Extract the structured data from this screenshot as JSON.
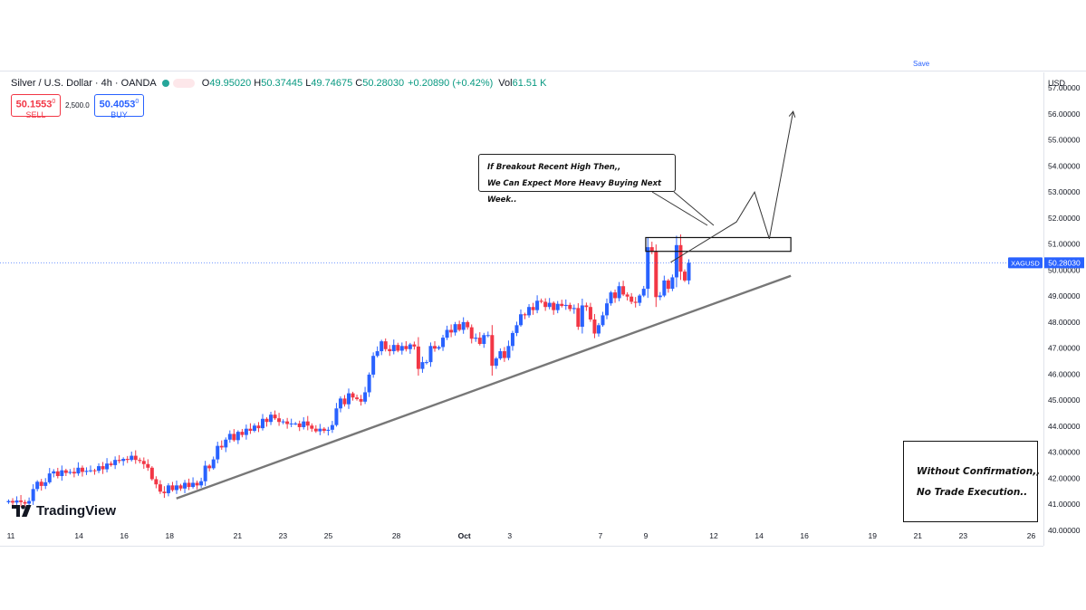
{
  "toolbar": {
    "save_label": "Save"
  },
  "symbol": {
    "name": "Silver / U.S. Dollar · 4h · OANDA",
    "ohlc": {
      "o_label": "O",
      "o": "49.95020",
      "h_label": "H",
      "h": "50.37445",
      "l_label": "L",
      "l": "49.74675",
      "c_label": "C",
      "c": "50.28030"
    },
    "change": "+0.20890 (+0.42%)",
    "vol_label": "Vol",
    "vol": "61.51 K"
  },
  "trade": {
    "sell_price": "50.1553",
    "sell_price_sup": "0",
    "sell_label": "SELL",
    "spread": "2,500.0",
    "buy_price": "50.4053",
    "buy_price_sup": "0",
    "buy_label": "BUY"
  },
  "axis": {
    "unit": "USD",
    "ticker_badge": "XAGUSD",
    "last_price": "50.28030"
  },
  "annotations": {
    "note_line1": "If Breakout Recent High Then,,",
    "note_line2": "We Can Expect More Heavy Buying Next Week..",
    "warn_line1": "Without Confirmation,,",
    "warn_line2": "No Trade Execution.."
  },
  "brand": {
    "logo_text": "TradingView"
  },
  "colors": {
    "up": "#2962ff",
    "down": "#f23645",
    "trend": "#777777",
    "price_line": "#2962ff"
  },
  "chart_data": {
    "type": "candlestick",
    "title": "Silver / U.S. Dollar · 4h · OANDA",
    "ylim": [
      39.4,
      57.6
    ],
    "y_ticks": [
      "40.00000",
      "41.00000",
      "42.00000",
      "43.00000",
      "44.00000",
      "45.00000",
      "46.00000",
      "47.00000",
      "48.00000",
      "49.00000",
      "50.00000",
      "51.00000",
      "52.00000",
      "53.00000",
      "54.00000",
      "55.00000",
      "56.00000",
      "57.00000"
    ],
    "x_ticks": [
      {
        "label": "11",
        "day": 11
      },
      {
        "label": "14",
        "day": 14
      },
      {
        "label": "16",
        "day": 16
      },
      {
        "label": "18",
        "day": 18
      },
      {
        "label": "21",
        "day": 21
      },
      {
        "label": "23",
        "day": 23
      },
      {
        "label": "25",
        "day": 25
      },
      {
        "label": "28",
        "day": 28
      },
      {
        "label": "Oct",
        "day": 31
      },
      {
        "label": "3",
        "day": 33
      },
      {
        "label": "7",
        "day": 37
      },
      {
        "label": "9",
        "day": 39
      },
      {
        "label": "12",
        "day": 42
      },
      {
        "label": "14",
        "day": 44
      },
      {
        "label": "16",
        "day": 46
      },
      {
        "label": "19",
        "day": 49
      },
      {
        "label": "21",
        "day": 51
      },
      {
        "label": "23",
        "day": 53
      },
      {
        "label": "26",
        "day": 56
      }
    ],
    "x_day_range": [
      10.8,
      56.3
    ],
    "trendline": [
      [
        18.3,
        41.22
      ],
      [
        45.4,
        49.78
      ]
    ],
    "resistance_zone": {
      "day_start": 39.0,
      "day_end": 45.4,
      "low": 50.72,
      "high": 51.25
    },
    "projection_path": [
      [
        40.1,
        50.3
      ],
      [
        43.0,
        51.85
      ],
      [
        43.8,
        53.0
      ],
      [
        44.45,
        51.2
      ],
      [
        45.5,
        56.1
      ]
    ],
    "last_close": 50.2803,
    "closes": [
      41.12,
      41.06,
      41.14,
      41.08,
      41.02,
      41.12,
      41.58,
      41.86,
      41.7,
      41.84,
      42.18,
      42.26,
      42.08,
      42.3,
      42.2,
      42.24,
      42.18,
      42.4,
      42.24,
      42.28,
      42.3,
      42.28,
      42.46,
      42.34,
      42.56,
      42.5,
      42.7,
      42.66,
      42.74,
      42.7,
      42.86,
      42.7,
      42.66,
      42.54,
      42.4,
      41.96,
      41.76,
      41.48,
      41.42,
      41.72,
      41.54,
      41.72,
      41.6,
      41.82,
      41.66,
      41.82,
      41.72,
      41.88,
      42.48,
      42.38,
      42.72,
      43.24,
      43.18,
      43.48,
      43.7,
      43.46,
      43.78,
      43.66,
      43.9,
      43.82,
      44.02,
      43.92,
      44.28,
      44.16,
      44.44,
      44.3,
      44.16,
      44.18,
      44.08,
      44.1,
      44.1,
      43.96,
      44.18,
      44.02,
      43.9,
      43.8,
      43.9,
      43.82,
      43.86,
      44.04,
      44.68,
      45.06,
      44.84,
      45.26,
      45.1,
      45.04,
      44.94,
      45.3,
      45.98,
      46.7,
      46.88,
      47.26,
      46.96,
      46.88,
      47.12,
      46.9,
      47.08,
      46.96,
      47.14,
      47.06,
      46.2,
      46.46,
      46.46,
      47.08,
      46.98,
      47.04,
      47.4,
      47.7,
      47.6,
      47.92,
      47.7,
      48.0,
      47.8,
      47.36,
      47.4,
      47.16,
      47.5,
      47.5,
      46.32,
      46.6,
      46.88,
      46.62,
      47.08,
      47.58,
      47.88,
      48.3,
      48.26,
      48.58,
      48.46,
      48.82,
      48.78,
      48.58,
      48.74,
      48.46,
      48.7,
      48.62,
      48.66,
      48.5,
      48.54,
      47.82,
      48.64,
      48.58,
      48.1,
      47.56,
      47.88,
      48.26,
      48.72,
      49.14,
      48.92,
      49.38,
      49.06,
      48.98,
      48.78,
      48.74,
      49.02,
      49.28,
      50.88,
      50.7,
      48.96,
      49.02,
      49.6,
      49.28,
      49.72,
      50.96,
      49.94,
      49.6,
      50.28
    ],
    "candles_ohlc_note": "Each candle: open = previous close; wicks estimated from chart"
  }
}
